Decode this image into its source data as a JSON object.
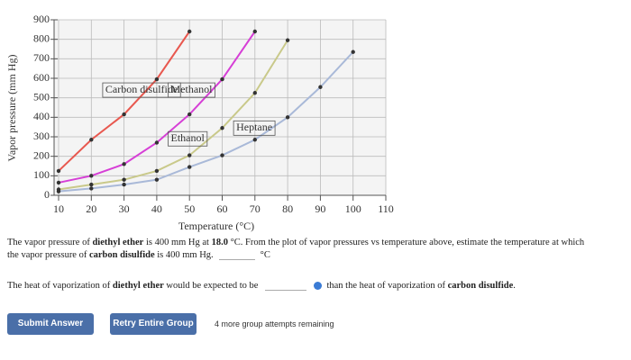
{
  "chart_data": {
    "type": "line",
    "x_label": "Temperature (°C)",
    "y_label": "Vapor pressure (mm Hg)",
    "xlim": [
      10,
      110
    ],
    "ylim": [
      0,
      900
    ],
    "xticks": [
      10,
      20,
      30,
      40,
      50,
      60,
      70,
      80,
      90,
      100,
      110
    ],
    "yticks": [
      0,
      100,
      200,
      300,
      400,
      500,
      600,
      700,
      800,
      900
    ],
    "grid": true,
    "series": [
      {
        "name": "Carbon disulfide",
        "color": "#e8584f",
        "x": [
          10,
          20,
          30,
          40,
          50
        ],
        "values": [
          125,
          285,
          415,
          595,
          840
        ]
      },
      {
        "name": "Methanol",
        "color": "#d63fd6",
        "x": [
          10,
          20,
          30,
          40,
          50,
          60,
          70
        ],
        "values": [
          65,
          100,
          160,
          270,
          415,
          595,
          840
        ]
      },
      {
        "name": "Ethanol",
        "color": "#c9c98a",
        "x": [
          10,
          20,
          30,
          40,
          50,
          60,
          70,
          80
        ],
        "values": [
          30,
          55,
          80,
          125,
          205,
          345,
          525,
          795
        ]
      },
      {
        "name": "Heptane",
        "color": "#a9b9d8",
        "x": [
          10,
          20,
          30,
          40,
          50,
          60,
          70,
          80,
          90,
          100
        ],
        "values": [
          20,
          35,
          55,
          80,
          145,
          205,
          285,
          400,
          555,
          735
        ]
      }
    ]
  },
  "question": {
    "q1": [
      "The vapor pressure of ",
      "diethyl ether",
      " is 400 mm Hg at ",
      "18.0",
      " °C. From the plot of vapor pressures vs temperature above, estimate the temperature at which",
      "the vapor pressure of ",
      "carbon disulfide",
      " is 400 mm Hg."
    ],
    "unit": "°C",
    "q2": [
      "The heat of vaporization of ",
      "diethyl ether",
      " would be expected to be",
      "than the heat of vaporization of ",
      "carbon disulfide",
      "."
    ]
  },
  "buttons": {
    "submit": "Submit Answer",
    "retry": "Retry Entire Group"
  },
  "attempts": "4 more group attempts remaining"
}
